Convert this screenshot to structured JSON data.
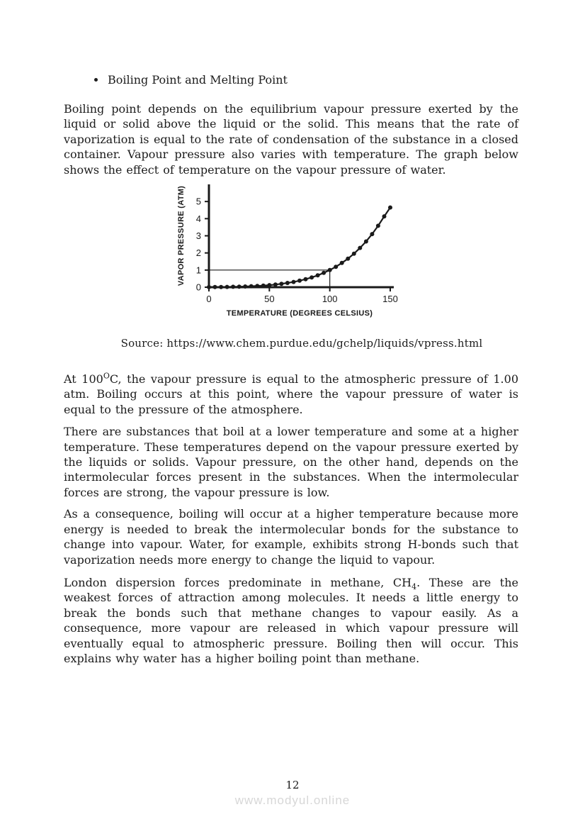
{
  "page": {
    "number": "12",
    "watermark": "www.modyul.online"
  },
  "heading": {
    "bullet_item": "Boiling Point and Melting Point"
  },
  "paragraphs": {
    "p1": "Boiling point depends on the equilibrium vapour pressure exerted by the liquid or solid above the liquid or the solid. This means that the rate of vaporization is equal to the rate of condensation of the substance in a closed container. Vapour pressure also varies with temperature. The graph below shows the effect of temperature on the vapour pressure of water.",
    "source_caption": "Source: https://www.chem.purdue.edu/gchelp/liquids/vpress.html",
    "p2_pre": "At 100",
    "p2_sup": "O",
    "p2_post": "C, the vapour pressure is equal to the atmospheric pressure of 1.00 atm. Boiling occurs at this point, where the vapour pressure of water is equal to the pressure of the atmosphere.",
    "p3": "There are substances that boil at a lower temperature and some at a higher temperature. These temperatures depend on the vapour pressure exerted by the liquids or solids. Vapour pressure, on the other hand, depends on the intermolecular forces present in the substances. When the intermolecular forces are strong, the vapour pressure is low.",
    "p4": "As a consequence, boiling will occur at a higher temperature because more energy is needed to break the intermolecular bonds for the substance to change into vapour. Water, for example, exhibits strong H-bonds such that vaporization needs more energy to change the liquid to vapour.",
    "p5_pre": "London dispersion forces predominate in methane, CH",
    "p5_sub": "4",
    "p5_post": ". These are the weakest forces of attraction among molecules. It needs a little energy to break the bonds such that methane changes to vapour easily. As a consequence, more vapour are released in which vapour pressure will eventually equal to atmospheric pressure. Boiling then will occur. This explains why water has a higher boiling point than methane."
  },
  "chart_data": {
    "type": "line",
    "title": "",
    "xlabel": "TEMPERATURE (DEGREES CELSIUS)",
    "ylabel": "VAPOR PRESSURE (ATM)",
    "x_ticks": [
      0,
      50,
      100,
      150
    ],
    "y_ticks": [
      0,
      1,
      2,
      3,
      4,
      5
    ],
    "xlim": [
      0,
      153
    ],
    "ylim": [
      0,
      6
    ],
    "grid": false,
    "legend": "none",
    "marker": "filled-circle",
    "line_color": "#1a1a1a",
    "reference_marker": {
      "x": 100,
      "y": 1
    },
    "x": [
      0,
      5,
      10,
      15,
      20,
      25,
      30,
      35,
      40,
      45,
      50,
      55,
      60,
      65,
      70,
      75,
      80,
      85,
      90,
      95,
      100,
      105,
      110,
      115,
      120,
      125,
      130,
      135,
      140,
      145,
      150
    ],
    "y": [
      0.006,
      0.009,
      0.012,
      0.017,
      0.023,
      0.031,
      0.042,
      0.056,
      0.073,
      0.095,
      0.122,
      0.155,
      0.197,
      0.247,
      0.308,
      0.38,
      0.467,
      0.571,
      0.692,
      0.834,
      1.0,
      1.192,
      1.414,
      1.668,
      1.959,
      2.292,
      2.67,
      3.099,
      3.585,
      4.133,
      4.65
    ]
  }
}
